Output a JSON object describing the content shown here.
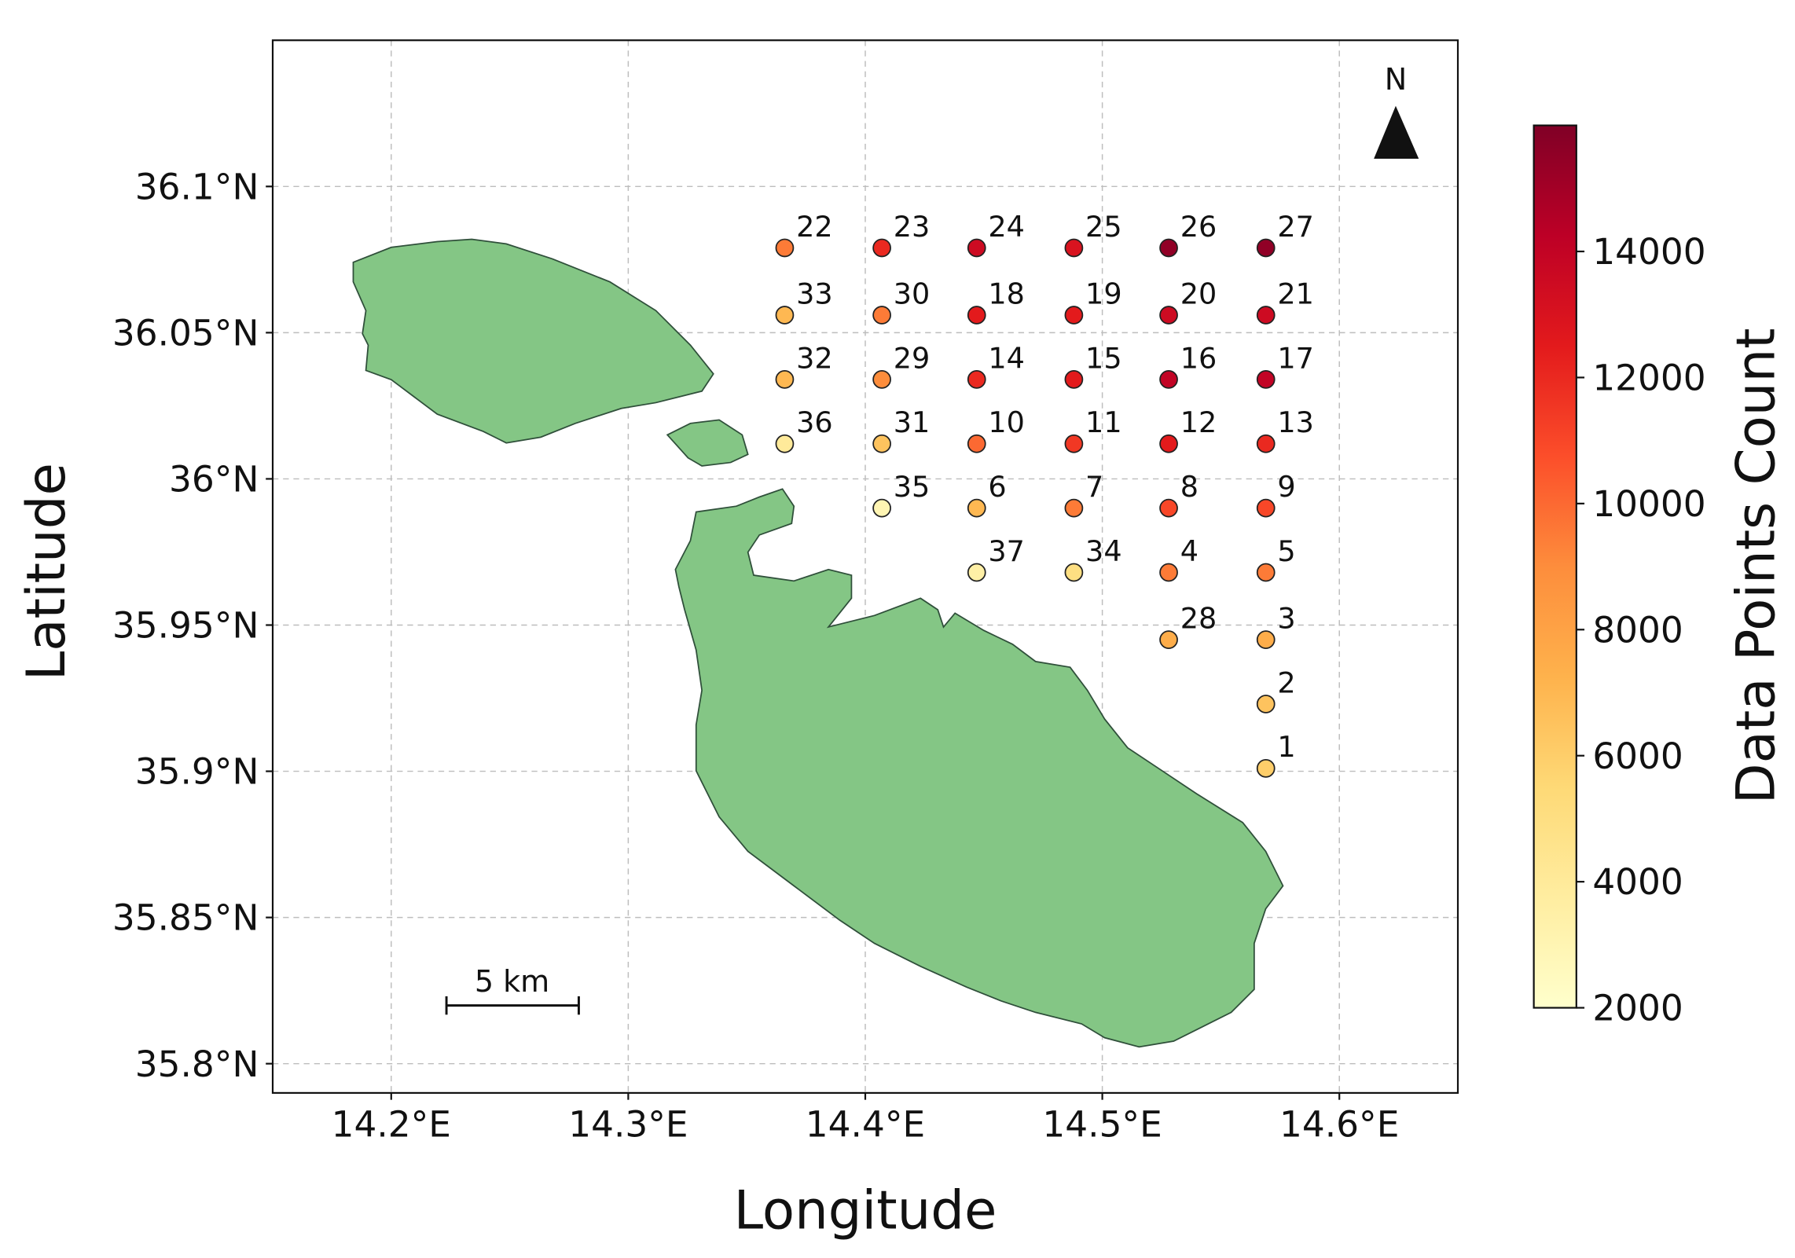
{
  "chart_data": {
    "type": "scatter",
    "xlabel": "Longitude",
    "ylabel": "Latitude",
    "xlim": [
      14.15,
      14.65
    ],
    "ylim": [
      35.79,
      36.15
    ],
    "xticks": [
      {
        "value": 14.2,
        "label": "14.2°E"
      },
      {
        "value": 14.3,
        "label": "14.3°E"
      },
      {
        "value": 14.4,
        "label": "14.4°E"
      },
      {
        "value": 14.5,
        "label": "14.5°E"
      },
      {
        "value": 14.6,
        "label": "14.6°E"
      }
    ],
    "yticks": [
      {
        "value": 35.8,
        "label": "35.8°N"
      },
      {
        "value": 35.85,
        "label": "35.85°N"
      },
      {
        "value": 35.9,
        "label": "35.9°N"
      },
      {
        "value": 35.95,
        "label": "35.95°N"
      },
      {
        "value": 36.0,
        "label": "36°N"
      },
      {
        "value": 36.05,
        "label": "36.05°N"
      },
      {
        "value": 36.1,
        "label": "36.1°N"
      }
    ],
    "grid": true,
    "colormap": "YlOrRd",
    "colorbar_label": "Data Points Count",
    "clim": [
      2000,
      16000
    ],
    "cticks": [
      2000,
      4000,
      6000,
      8000,
      10000,
      12000,
      14000
    ],
    "x": [
      14.366,
      14.407,
      14.447,
      14.488,
      14.528,
      14.569,
      14.366,
      14.407,
      14.447,
      14.488,
      14.528,
      14.569,
      14.366,
      14.407,
      14.447,
      14.488,
      14.528,
      14.569,
      14.366,
      14.407,
      14.447,
      14.488,
      14.528,
      14.569,
      14.407,
      14.447,
      14.488,
      14.528,
      14.569,
      14.447,
      14.488,
      14.528,
      14.569,
      14.528,
      14.569,
      14.569,
      14.569
    ],
    "y": [
      36.079,
      36.079,
      36.079,
      36.079,
      36.079,
      36.079,
      36.056,
      36.056,
      36.056,
      36.056,
      36.056,
      36.056,
      36.034,
      36.034,
      36.034,
      36.034,
      36.034,
      36.034,
      36.012,
      36.012,
      36.012,
      36.012,
      36.012,
      36.012,
      35.99,
      35.99,
      35.99,
      35.99,
      35.99,
      35.968,
      35.968,
      35.968,
      35.968,
      35.945,
      35.945,
      35.923,
      35.901
    ],
    "values": [
      9500,
      12000,
      13500,
      13000,
      15500,
      15500,
      7000,
      9500,
      12500,
      12500,
      13500,
      13500,
      7000,
      9000,
      12000,
      12500,
      14000,
      14000,
      4000,
      6500,
      10000,
      11500,
      12500,
      12000,
      3000,
      7000,
      9500,
      11000,
      11000,
      3500,
      5000,
      9500,
      9500,
      7500,
      7500,
      6500,
      6000
    ],
    "labels": [
      "22",
      "23",
      "24",
      "25",
      "26",
      "27",
      "33",
      "30",
      "18",
      "19",
      "20",
      "21",
      "32",
      "29",
      "14",
      "15",
      "16",
      "17",
      "36",
      "31",
      "10",
      "11",
      "12",
      "13",
      "35",
      "6",
      "7",
      "8",
      "9",
      "37",
      "34",
      "4",
      "5",
      "28",
      "3",
      "2",
      "1"
    ],
    "annotations": {
      "scale_bar": "5 km",
      "north": "N"
    }
  }
}
